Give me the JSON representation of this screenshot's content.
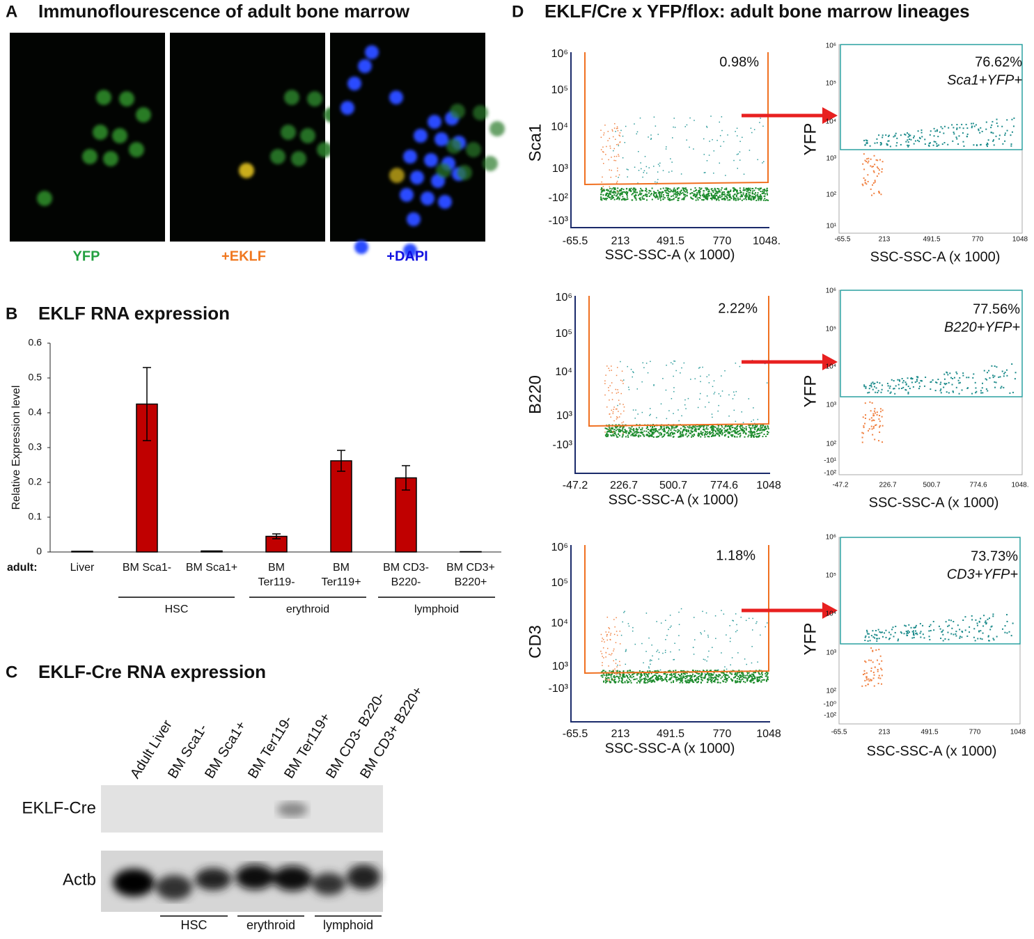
{
  "panel_a": {
    "label": "A",
    "title": "Immunoflourescence of adult bone marrow",
    "channels": [
      "YFP",
      "+EKLF",
      "+DAPI"
    ]
  },
  "chart_data": {
    "type": "bar",
    "label": "B",
    "title": "EKLF RNA expression",
    "y_label": "Relative Expression level",
    "row_label": "adult:",
    "categories": [
      [
        "Liver"
      ],
      [
        "BM Sca1-"
      ],
      [
        "BM Sca1+"
      ],
      [
        "BM",
        "Ter119-"
      ],
      [
        "BM",
        "Ter119+"
      ],
      [
        "BM CD3-",
        "B220-"
      ],
      [
        "BM CD3+",
        "B220+"
      ]
    ],
    "values": [
      0.002,
      0.425,
      0.003,
      0.045,
      0.262,
      0.213,
      0.001
    ],
    "errors": [
      0,
      0.105,
      0,
      0.007,
      0.03,
      0.035,
      0
    ],
    "color": "#c00000",
    "ylim": [
      0,
      0.6
    ],
    "yticks": [
      0,
      0.1,
      0.2,
      0.3,
      0.4,
      0.5,
      0.6
    ],
    "groups": [
      "HSC",
      "erythroid",
      "lymphoid"
    ]
  },
  "panel_c": {
    "label": "C",
    "title": "EKLF-Cre RNA expression",
    "lanes": [
      "Adult Liver",
      "BM Sca1-",
      "BM Sca1+",
      "BM Ter119-",
      "BM Ter119+",
      "BM CD3- B220-",
      "BM CD3+ B220+"
    ],
    "rows": [
      "EKLF-Cre",
      "Actb"
    ],
    "groups": [
      "HSC",
      "erythroid",
      "lymphoid"
    ]
  },
  "panel_d": {
    "label": "D",
    "title": "EKLF/Cre x YFP/flox: adult bone marrow lineages",
    "plots": [
      {
        "y_label": "Sca1",
        "x_label": "SSC-SSC-A (x 1000)",
        "xticks": [
          "-65.5",
          "213",
          "491.5",
          "770",
          "1048."
        ],
        "yticks": [
          "10⁶",
          "10⁵",
          "10⁴",
          "10³",
          "-10²",
          "-10³"
        ],
        "percent": "0.98%"
      },
      {
        "y_label": "YFP",
        "x_label": "SSC-SSC-A (x 1000)",
        "xticks": [
          "-65.5",
          "213",
          "491.5",
          "770",
          "1048"
        ],
        "yticks": [
          "10⁶",
          "10⁵",
          "10⁴",
          "10³",
          "10²",
          "10¹"
        ],
        "percent": "76.62%",
        "population": "Sca1+YFP+"
      },
      {
        "y_label": "B220",
        "x_label": "SSC-SSC-A (x 1000)",
        "xticks": [
          "-47.2",
          "226.7",
          "500.7",
          "774.6",
          "1048"
        ],
        "yticks": [
          "10⁶",
          "10⁵",
          "10⁴",
          "10³",
          "-10³"
        ],
        "percent": "2.22%"
      },
      {
        "y_label": "YFP",
        "x_label": "SSC-SSC-A (x 1000)",
        "xticks": [
          "-47.2",
          "226.7",
          "500.7",
          "774.6",
          "1048."
        ],
        "yticks": [
          "10⁶",
          "10⁵",
          "10⁴",
          "10³",
          "10²",
          "-10¹",
          "-10²"
        ],
        "percent": "77.56%",
        "population": "B220+YFP+"
      },
      {
        "y_label": "CD3",
        "x_label": "SSC-SSC-A (x 1000)",
        "xticks": [
          "-65.5",
          "213",
          "491.5",
          "770",
          "1048"
        ],
        "yticks": [
          "10⁶",
          "10⁵",
          "10⁴",
          "10³",
          "-10³"
        ],
        "percent": "1.18%"
      },
      {
        "y_label": "YFP",
        "x_label": "SSC-SSC-A (x 1000)",
        "xticks": [
          "-65.5",
          "213",
          "491.5",
          "770",
          "1048"
        ],
        "yticks": [
          "10⁶",
          "10⁵",
          "10⁴",
          "10³",
          "10²",
          "-10⁰",
          "-10²"
        ],
        "percent": "73.73%",
        "population": "CD3+YFP+"
      }
    ]
  }
}
